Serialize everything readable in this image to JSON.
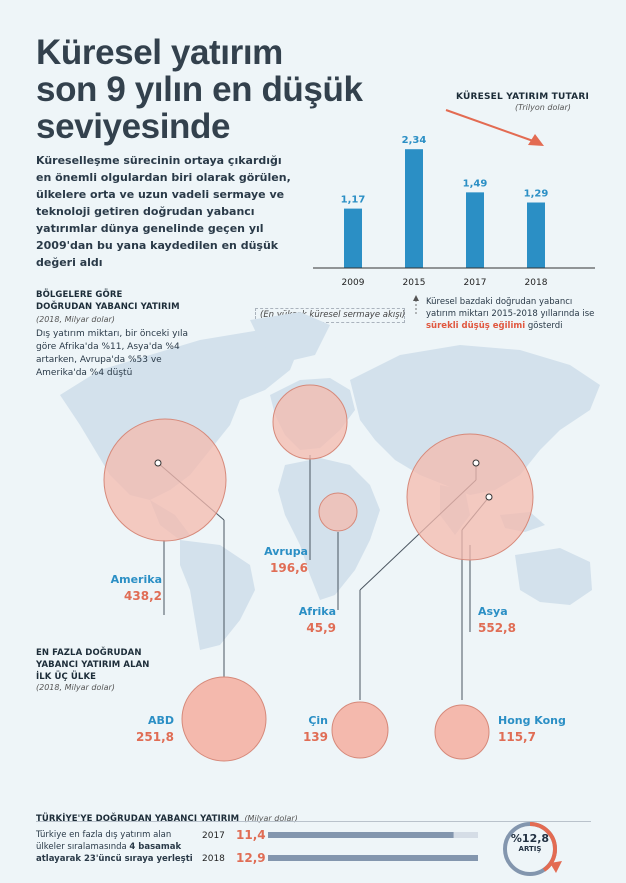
{
  "title": {
    "line1": "Küresel yatırım",
    "line2": "son 9 yılın en düşük",
    "line3": "seviyesinde"
  },
  "intro": "Küreselleşme sürecinin ortaya çıkardığı en önemli olgulardan biri olarak görülen, ülkelere orta ve uzun vadeli sermaye ve teknoloji getiren doğrudan yabancı yatırımlar dünya genelinde geçen yıl 2009'dan bu yana kaydedilen en düşük değeri aldı",
  "colors": {
    "bar": "#2b8fc5",
    "value_label": "#2b8fc5",
    "circle_fill": "#f4b9ad",
    "circle_stroke": "#d6897a",
    "accent": "#e0573f",
    "name_blue": "#2b8fc5"
  },
  "chart_data": [
    {
      "type": "bar",
      "title": "KÜRESEL YATIRIM TUTARI",
      "subtitle": "(Trilyon dolar)",
      "categories": [
        "2009",
        "2015",
        "2017",
        "2018"
      ],
      "values": [
        1.17,
        2.34,
        1.49,
        1.29
      ],
      "value_labels": [
        "1,17",
        "2,34",
        "1,49",
        "1,29"
      ],
      "ylim": [
        0,
        2.6
      ]
    },
    {
      "type": "bar",
      "title": "TÜRKİYE'YE DOĞRUDAN YABANCI YATIRIM",
      "subtitle": "(Milyar dolar)",
      "categories": [
        "2017",
        "2018"
      ],
      "values": [
        11.4,
        12.9
      ],
      "value_labels": [
        "11,4",
        "12,9"
      ],
      "xlim": [
        0,
        12.9
      ]
    }
  ],
  "notes": {
    "peak": "(En yüksek küresel sermaye akışı)",
    "trend_prefix": "Küresel bazdaki doğrudan yabancı yatırım miktarı 2015-2018 yıllarında ise ",
    "trend_highlight": "sürekli düşüş eğilimi",
    "trend_suffix": " gösterdi"
  },
  "regions": {
    "title_line1": "BÖLGELERE GÖRE",
    "title_line2": "DOĞRUDAN YABANCI YATIRIM",
    "unit": "(2018, Milyar dolar)",
    "description": "Dış yatırım miktarı, bir önceki yıla göre Afrika'da %11, Asya'da %4 artarken, Avrupa'da %53 ve Amerika'da %4 düştü",
    "items": [
      {
        "name": "Amerika",
        "value": "438,2"
      },
      {
        "name": "Avrupa",
        "value": "196,6"
      },
      {
        "name": "Afrika",
        "value": "45,9"
      },
      {
        "name": "Asya",
        "value": "552,8"
      }
    ]
  },
  "top_countries": {
    "title_line1": "EN FAZLA DOĞRUDAN",
    "title_line2": "YABANCI YATIRIM ALAN",
    "title_line3": "İLK ÜÇ ÜLKE",
    "unit": "(2018, Milyar dolar)",
    "items": [
      {
        "name": "ABD",
        "value": "251,8"
      },
      {
        "name": "Çin",
        "value": "139"
      },
      {
        "name": "Hong Kong",
        "value": "115,7"
      }
    ]
  },
  "turkey": {
    "title": "TÜRKİYE'YE DOĞRUDAN YABANCI YATIRIM",
    "unit": "(Milyar dolar)",
    "text_line1": "Türkiye en fazla dış yatırım alan",
    "text_line2_prefix": "ülkeler sıralamasında ",
    "text_line2_bold": "4 basamak",
    "text_line3": "atlayarak 23'üncü sıraya yerleşti",
    "increase_value": "%12,8",
    "increase_label": "ARTIŞ"
  }
}
